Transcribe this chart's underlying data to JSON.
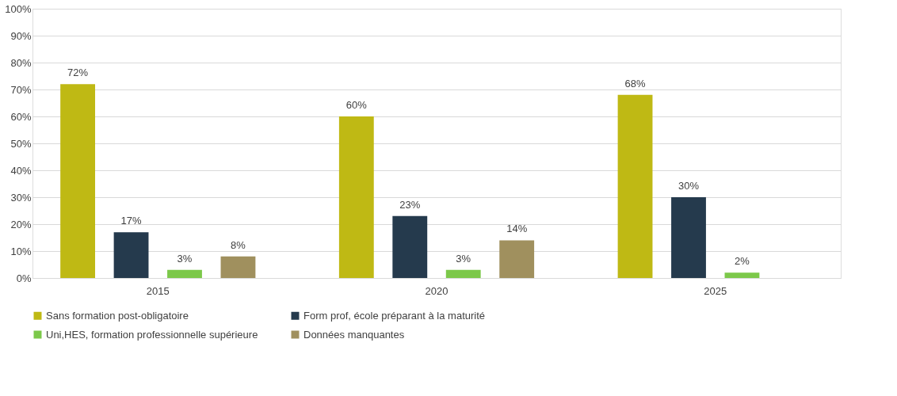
{
  "chart_data": {
    "type": "bar",
    "categories": [
      "2015",
      "2020",
      "2025"
    ],
    "series": [
      {
        "name": "Sans formation post-obligatoire",
        "color": "#bfb914",
        "values": [
          72,
          60,
          68
        ]
      },
      {
        "name": "Form prof, école préparant à la maturité",
        "color": "#253a4d",
        "values": [
          17,
          23,
          30
        ]
      },
      {
        "name": "Uni,HES, formation professionnelle supérieure",
        "color": "#7cc84a",
        "values": [
          3,
          3,
          2
        ]
      },
      {
        "name": "Données manquantes",
        "color": "#a0905e",
        "values": [
          8,
          14,
          null
        ]
      }
    ],
    "ylim": [
      0,
      100
    ],
    "yticks": [
      {
        "value": 0,
        "label": "0%"
      },
      {
        "value": 10,
        "label": "10%"
      },
      {
        "value": 20,
        "label": "20%"
      },
      {
        "value": 30,
        "label": "30%"
      },
      {
        "value": 40,
        "label": "40%"
      },
      {
        "value": 50,
        "label": "50%"
      },
      {
        "value": 60,
        "label": "60%"
      },
      {
        "value": 70,
        "label": "70%"
      },
      {
        "value": 80,
        "label": "80%"
      },
      {
        "value": 90,
        "label": "90%"
      },
      {
        "value": 100,
        "label": "100%"
      }
    ],
    "value_labels": [
      [
        "72%",
        "60%",
        "68%"
      ],
      [
        "17%",
        "23%",
        "30%"
      ],
      [
        "3%",
        "3%",
        "2%"
      ],
      [
        "8%",
        "14%",
        null
      ]
    ],
    "grid": "y",
    "legend": "bottom"
  }
}
